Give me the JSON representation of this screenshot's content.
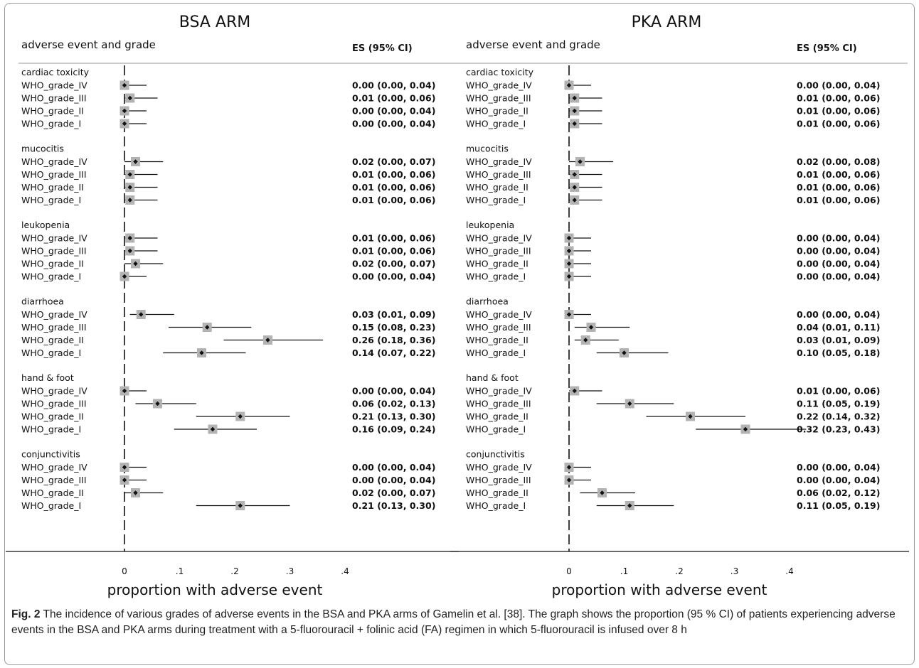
{
  "chart_data": [
    {
      "type": "forest",
      "title": "BSA ARM",
      "column_header_left": "adverse event and grade",
      "column_header_right": "ES (95% CI)",
      "xlabel": "proportion with adverse event",
      "xlim": [
        0,
        0.4
      ],
      "xticks": [
        "0",
        ".1",
        ".2",
        ".3",
        ".4"
      ],
      "reference_line": 0,
      "groups": [
        {
          "name": "cardiac toxicity",
          "rows": [
            {
              "label": "WHO_grade_IV",
              "es": 0.0,
              "lo": 0.0,
              "hi": 0.04,
              "text": "0.00 (0.00, 0.04)"
            },
            {
              "label": "WHO_grade_III",
              "es": 0.01,
              "lo": 0.0,
              "hi": 0.06,
              "text": "0.01 (0.00, 0.06)"
            },
            {
              "label": "WHO_grade_II",
              "es": 0.0,
              "lo": 0.0,
              "hi": 0.04,
              "text": "0.00 (0.00, 0.04)"
            },
            {
              "label": "WHO_grade_I",
              "es": 0.0,
              "lo": 0.0,
              "hi": 0.04,
              "text": "0.00 (0.00, 0.04)"
            }
          ]
        },
        {
          "name": "mucocitis",
          "rows": [
            {
              "label": "WHO_grade_IV",
              "es": 0.02,
              "lo": 0.0,
              "hi": 0.07,
              "text": "0.02 (0.00, 0.07)"
            },
            {
              "label": "WHO_grade_III",
              "es": 0.01,
              "lo": 0.0,
              "hi": 0.06,
              "text": "0.01 (0.00, 0.06)"
            },
            {
              "label": "WHO_grade_II",
              "es": 0.01,
              "lo": 0.0,
              "hi": 0.06,
              "text": "0.01 (0.00, 0.06)"
            },
            {
              "label": "WHO_grade_I",
              "es": 0.01,
              "lo": 0.0,
              "hi": 0.06,
              "text": "0.01 (0.00, 0.06)"
            }
          ]
        },
        {
          "name": "leukopenia",
          "rows": [
            {
              "label": "WHO_grade_IV",
              "es": 0.01,
              "lo": 0.0,
              "hi": 0.06,
              "text": "0.01 (0.00, 0.06)"
            },
            {
              "label": "WHO_grade_III",
              "es": 0.01,
              "lo": 0.0,
              "hi": 0.06,
              "text": "0.01 (0.00, 0.06)"
            },
            {
              "label": "WHO_grade_II",
              "es": 0.02,
              "lo": 0.0,
              "hi": 0.07,
              "text": "0.02 (0.00, 0.07)"
            },
            {
              "label": "WHO_grade_I",
              "es": 0.0,
              "lo": 0.0,
              "hi": 0.04,
              "text": "0.00 (0.00, 0.04)"
            }
          ]
        },
        {
          "name": "diarrhoea",
          "rows": [
            {
              "label": "WHO_grade_IV",
              "es": 0.03,
              "lo": 0.01,
              "hi": 0.09,
              "text": "0.03 (0.01, 0.09)"
            },
            {
              "label": "WHO_grade_III",
              "es": 0.15,
              "lo": 0.08,
              "hi": 0.23,
              "text": "0.15 (0.08, 0.23)"
            },
            {
              "label": "WHO_grade_II",
              "es": 0.26,
              "lo": 0.18,
              "hi": 0.36,
              "text": "0.26 (0.18, 0.36)"
            },
            {
              "label": "WHO_grade_I",
              "es": 0.14,
              "lo": 0.07,
              "hi": 0.22,
              "text": "0.14 (0.07, 0.22)"
            }
          ]
        },
        {
          "name": "hand & foot",
          "rows": [
            {
              "label": "WHO_grade_IV",
              "es": 0.0,
              "lo": 0.0,
              "hi": 0.04,
              "text": "0.00 (0.00, 0.04)"
            },
            {
              "label": "WHO_grade_III",
              "es": 0.06,
              "lo": 0.02,
              "hi": 0.13,
              "text": "0.06 (0.02, 0.13)"
            },
            {
              "label": "WHO_grade_II",
              "es": 0.21,
              "lo": 0.13,
              "hi": 0.3,
              "text": "0.21 (0.13, 0.30)"
            },
            {
              "label": "WHO_grade_I",
              "es": 0.16,
              "lo": 0.09,
              "hi": 0.24,
              "text": "0.16 (0.09, 0.24)"
            }
          ]
        },
        {
          "name": "conjunctivitis",
          "rows": [
            {
              "label": "WHO_grade_IV",
              "es": 0.0,
              "lo": 0.0,
              "hi": 0.04,
              "text": "0.00 (0.00, 0.04)"
            },
            {
              "label": "WHO_grade_III",
              "es": 0.0,
              "lo": 0.0,
              "hi": 0.04,
              "text": "0.00 (0.00, 0.04)"
            },
            {
              "label": "WHO_grade_II",
              "es": 0.02,
              "lo": 0.0,
              "hi": 0.07,
              "text": "0.02 (0.00, 0.07)"
            },
            {
              "label": "WHO_grade_I",
              "es": 0.21,
              "lo": 0.13,
              "hi": 0.3,
              "text": "0.21 (0.13, 0.30)"
            }
          ]
        }
      ]
    },
    {
      "type": "forest",
      "title": "PKA ARM",
      "column_header_left": "adverse event and grade",
      "column_header_right": "ES (95% CI)",
      "xlabel": "proportion with adverse event",
      "xlim": [
        0,
        0.4
      ],
      "xticks": [
        "0",
        ".1",
        ".2",
        ".3",
        ".4"
      ],
      "reference_line": 0,
      "groups": [
        {
          "name": "cardiac toxicity",
          "rows": [
            {
              "label": "WHO_grade_IV",
              "es": 0.0,
              "lo": 0.0,
              "hi": 0.04,
              "text": "0.00 (0.00, 0.04)"
            },
            {
              "label": "WHO_grade_III",
              "es": 0.01,
              "lo": 0.0,
              "hi": 0.06,
              "text": "0.01 (0.00, 0.06)"
            },
            {
              "label": "WHO_grade_II",
              "es": 0.01,
              "lo": 0.0,
              "hi": 0.06,
              "text": "0.01 (0.00, 0.06)"
            },
            {
              "label": "WHO_grade_I",
              "es": 0.01,
              "lo": 0.0,
              "hi": 0.06,
              "text": "0.01 (0.00, 0.06)"
            }
          ]
        },
        {
          "name": "mucocitis",
          "rows": [
            {
              "label": "WHO_grade_IV",
              "es": 0.02,
              "lo": 0.0,
              "hi": 0.08,
              "text": "0.02 (0.00, 0.08)"
            },
            {
              "label": "WHO_grade_III",
              "es": 0.01,
              "lo": 0.0,
              "hi": 0.06,
              "text": "0.01 (0.00, 0.06)"
            },
            {
              "label": "WHO_grade_II",
              "es": 0.01,
              "lo": 0.0,
              "hi": 0.06,
              "text": "0.01 (0.00, 0.06)"
            },
            {
              "label": "WHO_grade_I",
              "es": 0.01,
              "lo": 0.0,
              "hi": 0.06,
              "text": "0.01 (0.00, 0.06)"
            }
          ]
        },
        {
          "name": "leukopenia",
          "rows": [
            {
              "label": "WHO_grade_IV",
              "es": 0.0,
              "lo": 0.0,
              "hi": 0.04,
              "text": "0.00 (0.00, 0.04)"
            },
            {
              "label": "WHO_grade_III",
              "es": 0.0,
              "lo": 0.0,
              "hi": 0.04,
              "text": "0.00 (0.00, 0.04)"
            },
            {
              "label": "WHO_grade_II",
              "es": 0.0,
              "lo": 0.0,
              "hi": 0.04,
              "text": "0.00 (0.00, 0.04)"
            },
            {
              "label": "WHO_grade_I",
              "es": 0.0,
              "lo": 0.0,
              "hi": 0.04,
              "text": "0.00 (0.00, 0.04)"
            }
          ]
        },
        {
          "name": "diarrhoea",
          "rows": [
            {
              "label": "WHO_grade_IV",
              "es": 0.0,
              "lo": 0.0,
              "hi": 0.04,
              "text": "0.00 (0.00, 0.04)"
            },
            {
              "label": "WHO_grade_III",
              "es": 0.04,
              "lo": 0.01,
              "hi": 0.11,
              "text": "0.04 (0.01, 0.11)"
            },
            {
              "label": "WHO_grade_II",
              "es": 0.03,
              "lo": 0.01,
              "hi": 0.09,
              "text": "0.03 (0.01, 0.09)"
            },
            {
              "label": "WHO_grade_I",
              "es": 0.1,
              "lo": 0.05,
              "hi": 0.18,
              "text": "0.10 (0.05, 0.18)"
            }
          ]
        },
        {
          "name": "hand & foot",
          "rows": [
            {
              "label": "WHO_grade_IV",
              "es": 0.01,
              "lo": 0.0,
              "hi": 0.06,
              "text": "0.01 (0.00, 0.06)"
            },
            {
              "label": "WHO_grade_III",
              "es": 0.11,
              "lo": 0.05,
              "hi": 0.19,
              "text": "0.11 (0.05, 0.19)"
            },
            {
              "label": "WHO_grade_II",
              "es": 0.22,
              "lo": 0.14,
              "hi": 0.32,
              "text": "0.22 (0.14, 0.32)"
            },
            {
              "label": "WHO_grade_I",
              "es": 0.32,
              "lo": 0.23,
              "hi": 0.43,
              "text": "0.32 (0.23, 0.43)"
            }
          ]
        },
        {
          "name": "conjunctivitis",
          "rows": [
            {
              "label": "WHO_grade_IV",
              "es": 0.0,
              "lo": 0.0,
              "hi": 0.04,
              "text": "0.00 (0.00, 0.04)"
            },
            {
              "label": "WHO_grade_III",
              "es": 0.0,
              "lo": 0.0,
              "hi": 0.04,
              "text": "0.00 (0.00, 0.04)"
            },
            {
              "label": "WHO_grade_II",
              "es": 0.06,
              "lo": 0.02,
              "hi": 0.12,
              "text": "0.06 (0.02, 0.12)"
            },
            {
              "label": "WHO_grade_I",
              "es": 0.11,
              "lo": 0.05,
              "hi": 0.19,
              "text": "0.11 (0.05, 0.19)"
            }
          ]
        }
      ]
    }
  ],
  "caption": {
    "label": "Fig. 2",
    "text": "The incidence of various grades of adverse events in the BSA and PKA arms of Gamelin et al. [38]. The graph shows the proportion (95 % CI) of patients experiencing adverse events in the BSA and PKA arms during treatment with a 5-fluorouracil + folinic acid (FA) regimen in which 5-fluorouracil is infused over 8 h"
  },
  "colors": {
    "box": "#b3b3b3",
    "line": "#111111",
    "frame": "#9a9a9a"
  }
}
